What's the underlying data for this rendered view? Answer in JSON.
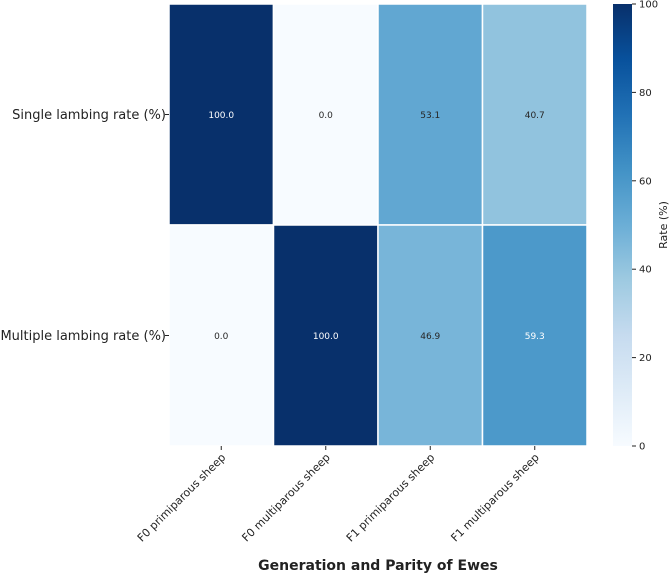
{
  "chart_data": {
    "type": "heatmap",
    "title": "",
    "xlabel": "Generation and Parity of Ewes",
    "ylabel": "",
    "x_categories": [
      "F0 primiparous sheep",
      "F0 multiparous sheep",
      "F1 primiparous sheep",
      "F1 multiparous sheep"
    ],
    "y_categories": [
      "Single lambing rate (%)",
      "Multiple lambing rate (%)"
    ],
    "values": [
      [
        100.0,
        0.0,
        53.1,
        40.7
      ],
      [
        0.0,
        100.0,
        46.9,
        59.3
      ]
    ],
    "value_labels": [
      [
        "100.0",
        "0.0",
        "53.1",
        "40.7"
      ],
      [
        "0.0",
        "100.0",
        "46.9",
        "59.3"
      ]
    ],
    "colormap": "Blues",
    "colorbar": {
      "label": "Rate (%)",
      "range": [
        0,
        100
      ],
      "ticks": [
        0,
        20,
        40,
        60,
        80,
        100
      ]
    }
  }
}
